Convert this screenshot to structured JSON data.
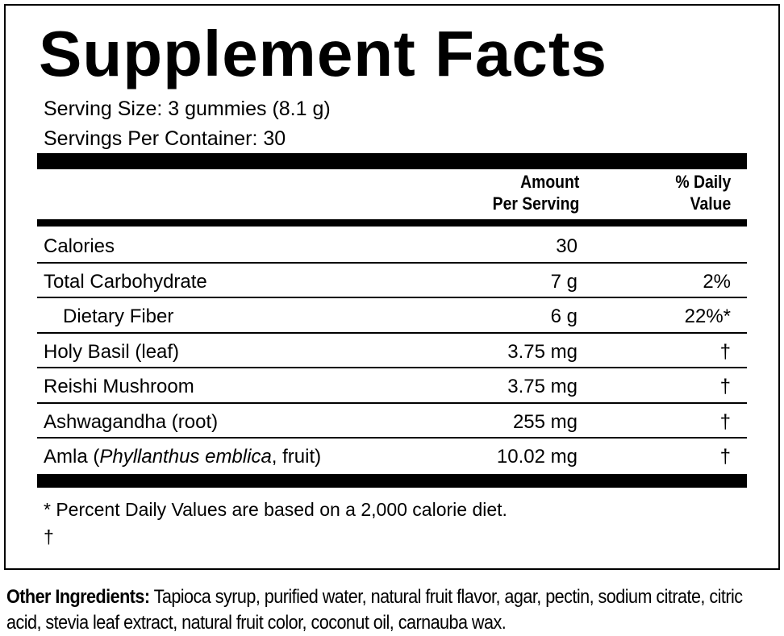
{
  "title": "Supplement Facts",
  "serving_size": "Serving Size: 3 gummies (8.1 g)",
  "servings_per_container": "Servings Per Container: 30",
  "header": {
    "amount": "Amount",
    "amount_line2": "Per Serving",
    "daily_value": "% Daily",
    "daily_value_line2": "Value"
  },
  "rows": [
    {
      "name": "Calories",
      "amount": "30"
    },
    {
      "name": "Total Carbohydrate",
      "amount": "7 g",
      "daily_value": "2%"
    },
    {
      "name": "Dietary Fiber",
      "amount": "6 g",
      "daily_value": "22%*"
    },
    {
      "name": "Holy Basil (leaf)",
      "amount": "3.75 mg",
      "daily_value": "†"
    },
    {
      "name": "Reishi Mushroom",
      "amount": "3.75 mg",
      "daily_value": "†"
    },
    {
      "name": "Ashwagandha (root)",
      "amount": "255 mg",
      "daily_value": "†"
    },
    {
      "name_before": "Amla (",
      "name_italic": "Phyllanthus emblica",
      "name_after": ", fruit)",
      "amount": "10.02 mg",
      "daily_value": "†"
    }
  ],
  "footnote": "* Percent Daily Values are based on a 2,000 calorie diet.",
  "footnote_dagger": "†",
  "other_ingredients": {
    "label": "Other Ingredients:",
    "text": "Tapioca syrup, purified water, natural fruit flavor, agar, pectin, sodium citrate, citric acid, stevia leaf extract, natural fruit color, coconut oil, carnauba wax."
  }
}
